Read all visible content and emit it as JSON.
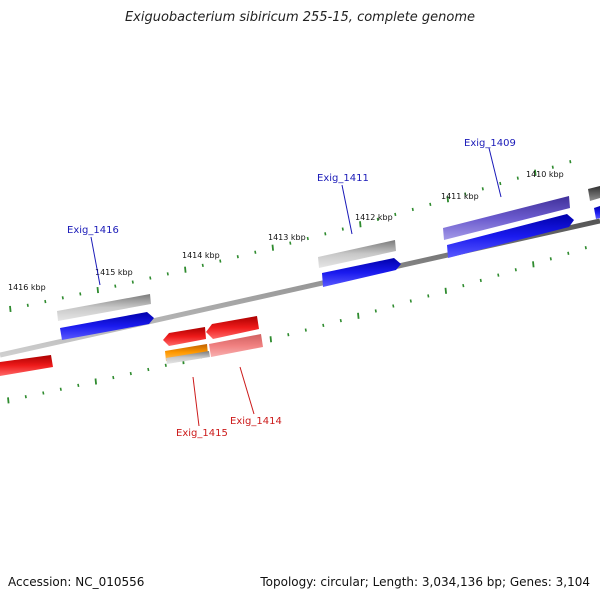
{
  "header": {
    "title": "Exiguobacterium sibiricum 255-15, complete genome"
  },
  "footer": {
    "accession": "Accession: NC_010556",
    "topology": "Topology: circular; Length: 3,034,136 bp; Genes: 3,104"
  },
  "scale_labels": {
    "kbp_1416": "1416 kbp",
    "kbp_1415": "1415 kbp",
    "kbp_1414": "1414 kbp",
    "kbp_1413": "1413 kbp",
    "kbp_1412": "1412 kbp",
    "kbp_1411": "1411 kbp",
    "kbp_1410": "1410 kbp"
  },
  "gene_labels": {
    "exig_1416": "Exig_1416",
    "exig_1411": "Exig_1411",
    "exig_1409": "Exig_1409",
    "exig_1415": "Exig_1415",
    "exig_1414": "Exig_1414"
  },
  "colors": {
    "forward_cds": "#1a1aee",
    "reverse_cds": "#ee1a1a",
    "hit_gray": "#b0b0b0",
    "hit_purple": "#6a5acd",
    "hit_orange": "#ff9900",
    "hit_pink": "#f08080",
    "tick_green": "#2e8b2e",
    "label_blue": "#1a1ab8",
    "label_red": "#cc1a1a",
    "backbone": "#808080"
  }
}
